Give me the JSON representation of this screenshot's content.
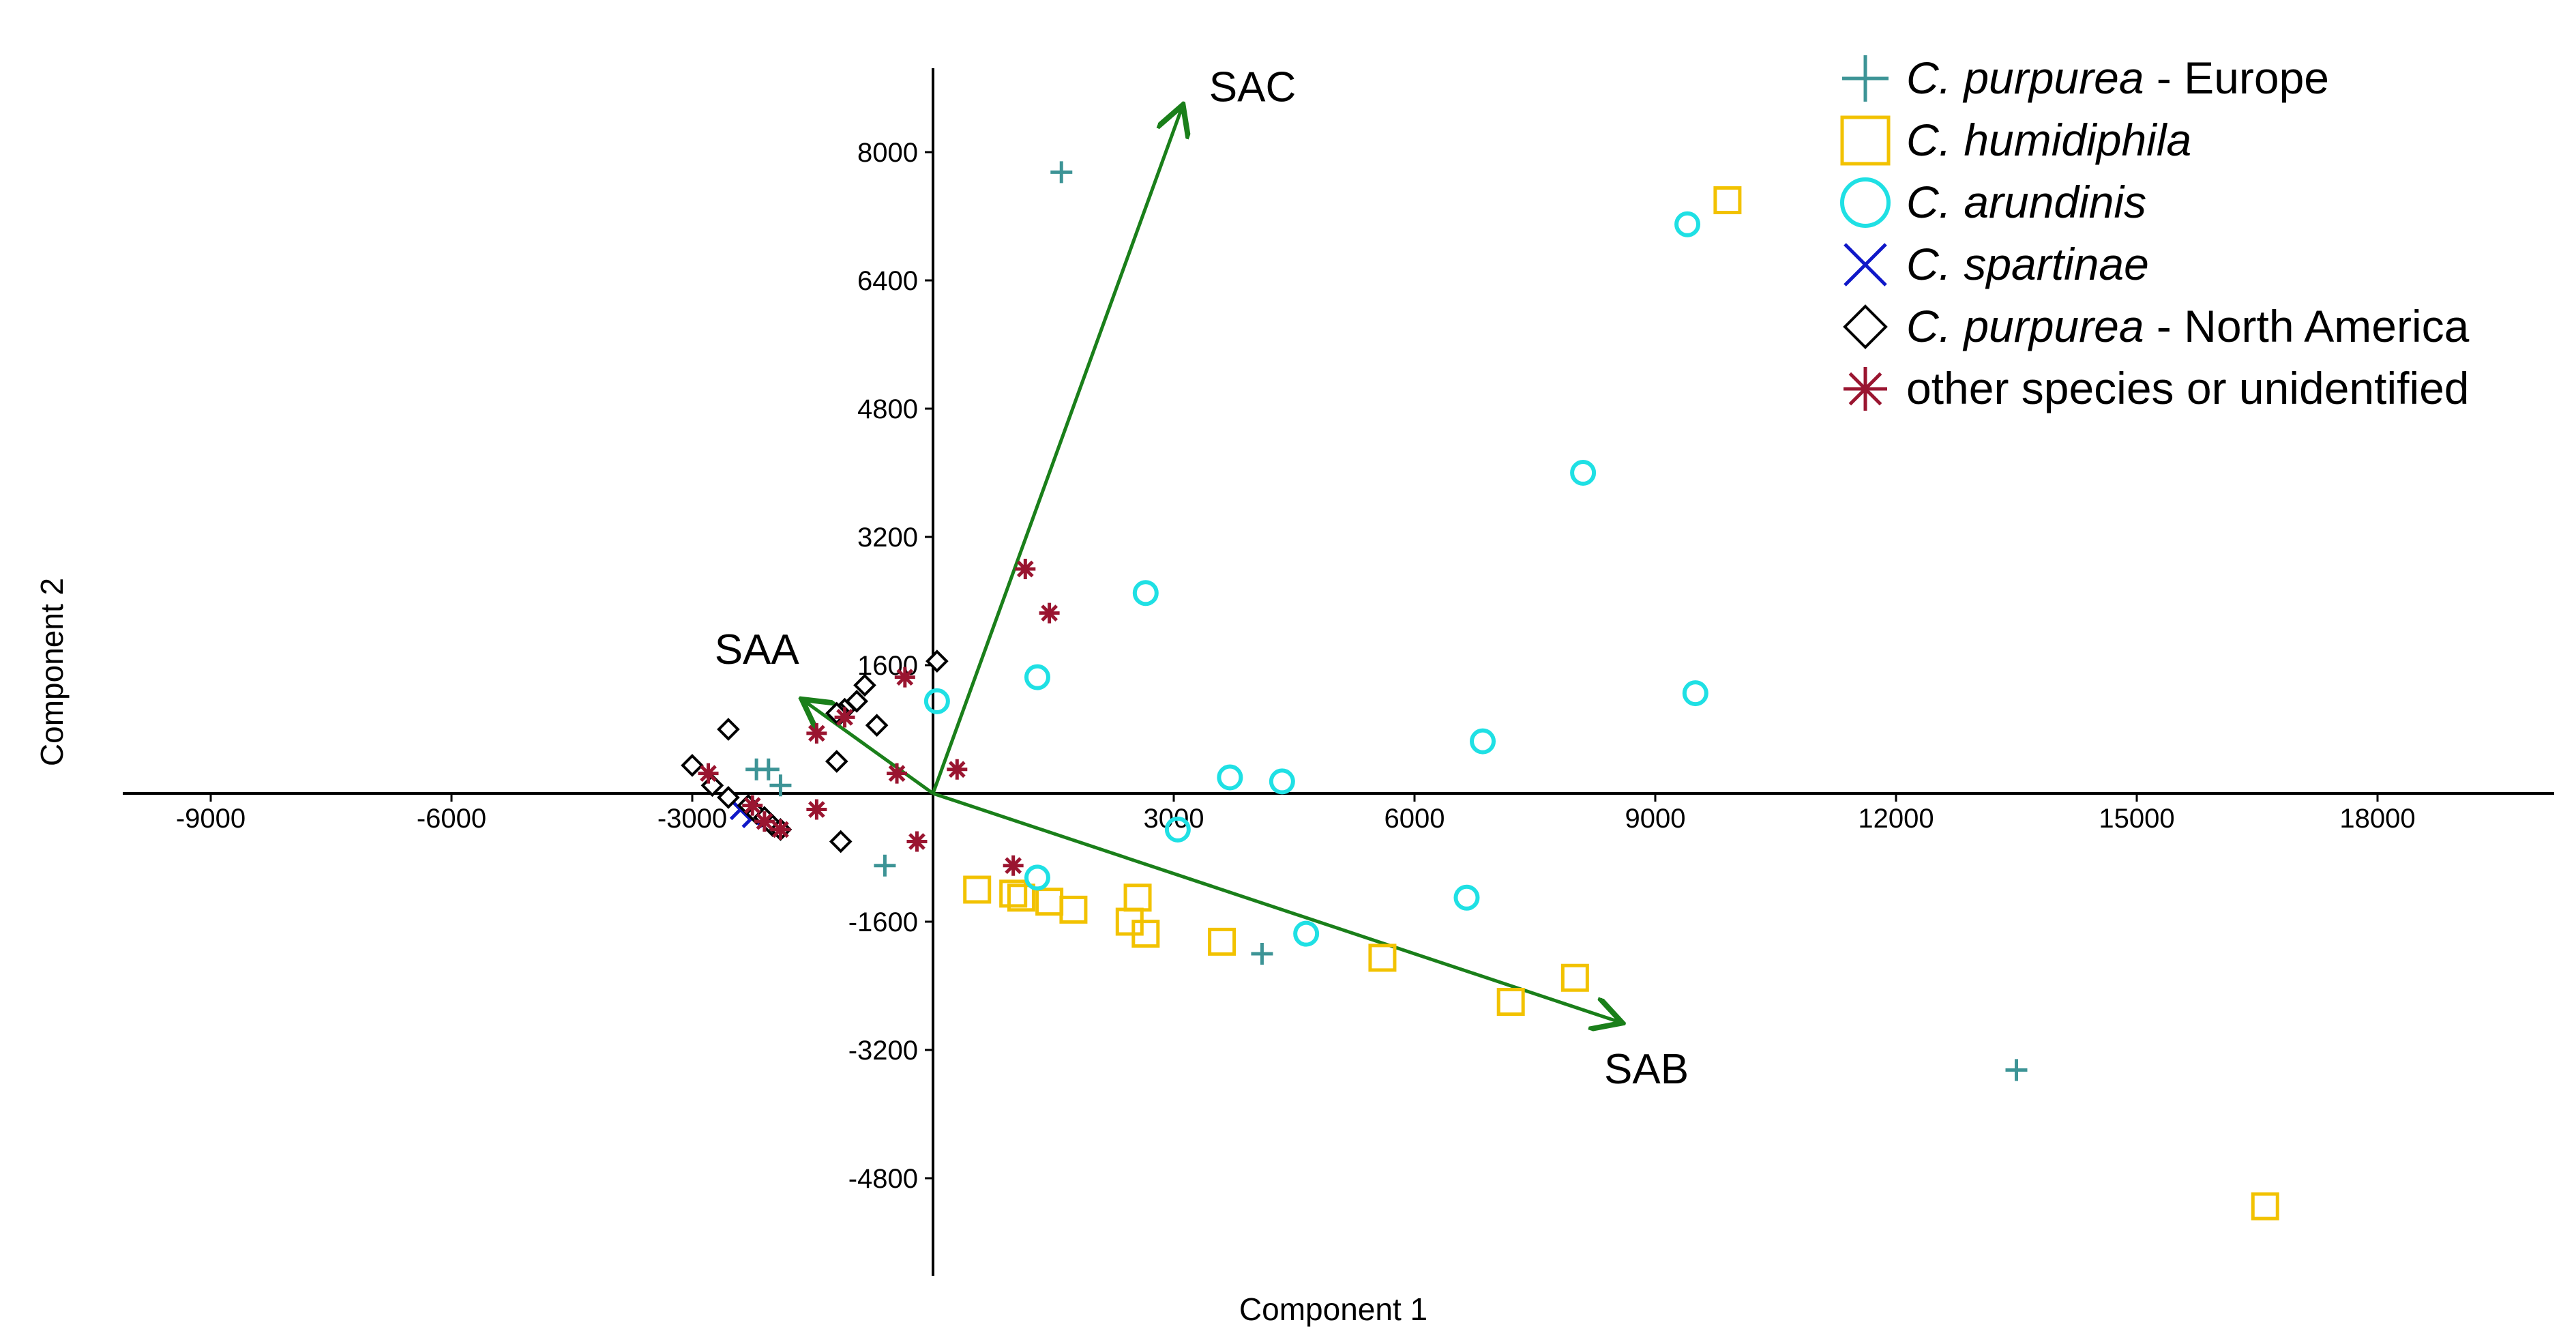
{
  "chart_data": {
    "type": "scatter",
    "title": "",
    "xlabel": "Component 1",
    "ylabel": "Component 2",
    "xlim": [
      -10000,
      20200
    ],
    "ylim": [
      -5950,
      9000
    ],
    "x_ticks": [
      -9000,
      -6000,
      -3000,
      3000,
      6000,
      9000,
      12000,
      15000,
      18000
    ],
    "y_ticks": [
      -4800,
      -3200,
      -1600,
      1600,
      3200,
      4800,
      6400,
      8000
    ],
    "x_tick_labels": [
      "-9000",
      "-6000",
      "-3000",
      "3000",
      "6000",
      "9000",
      "12000",
      "15000",
      "18000"
    ],
    "y_tick_labels": [
      "-4800",
      "-3200",
      "-1600",
      "1600",
      "3200",
      "4800",
      "6400",
      "8000"
    ],
    "grid": false,
    "legend_position": "top-right",
    "series": [
      {
        "name": "C. purpurea - Europe",
        "name_italic": "C. purpurea",
        "name_plain": " - Europe",
        "marker": "plus",
        "color": "#3d9496",
        "points": [
          [
            1600,
            7750
          ],
          [
            13500,
            -3450
          ],
          [
            -600,
            -900
          ],
          [
            4100,
            -2000
          ],
          [
            -2200,
            300
          ],
          [
            -2050,
            300
          ],
          [
            -1900,
            100
          ]
        ]
      },
      {
        "name": "C. humidiphila",
        "name_italic": "C. humidiphila",
        "name_plain": "",
        "marker": "square",
        "color": "#f2c200",
        "points": [
          [
            9900,
            7400
          ],
          [
            16600,
            -5150
          ],
          [
            550,
            -1200
          ],
          [
            1000,
            -1250
          ],
          [
            1100,
            -1300
          ],
          [
            1450,
            -1350
          ],
          [
            1750,
            -1450
          ],
          [
            2550,
            -1300
          ],
          [
            2450,
            -1600
          ],
          [
            2650,
            -1750
          ],
          [
            3600,
            -1850
          ],
          [
            5600,
            -2050
          ],
          [
            7200,
            -2600
          ],
          [
            8000,
            -2300
          ]
        ]
      },
      {
        "name": "C. arundinis",
        "name_italic": "C. arundinis",
        "name_plain": "",
        "marker": "circle",
        "color": "#1fe0e4",
        "points": [
          [
            9400,
            7100
          ],
          [
            8100,
            4000
          ],
          [
            2650,
            2500
          ],
          [
            1300,
            1450
          ],
          [
            50,
            1150
          ],
          [
            9500,
            1250
          ],
          [
            6850,
            650
          ],
          [
            3700,
            200
          ],
          [
            4350,
            150
          ],
          [
            3050,
            -450
          ],
          [
            1300,
            -1050
          ],
          [
            4650,
            -1750
          ],
          [
            6650,
            -1300
          ]
        ]
      },
      {
        "name": "C. spartinae",
        "name_italic": "C. spartinae",
        "name_plain": "",
        "marker": "x",
        "color": "#1018c8",
        "points": [
          [
            -2400,
            -200
          ],
          [
            -2250,
            -300
          ]
        ]
      },
      {
        "name": "C. purpurea - North America",
        "name_italic": "C. purpurea",
        "name_plain": " - North America",
        "marker": "diamond",
        "color": "#000000",
        "points": [
          [
            50,
            1650
          ],
          [
            -850,
            1350
          ],
          [
            -950,
            1150
          ],
          [
            -1100,
            1050
          ],
          [
            -1150,
            1000
          ],
          [
            -1200,
            1000
          ],
          [
            -700,
            850
          ],
          [
            -2550,
            800
          ],
          [
            -1200,
            400
          ],
          [
            -3000,
            350
          ],
          [
            -2750,
            100
          ],
          [
            -2550,
            -50
          ],
          [
            -2300,
            -150
          ],
          [
            -2200,
            -250
          ],
          [
            -2100,
            -300
          ],
          [
            -2000,
            -400
          ],
          [
            -1900,
            -450
          ],
          [
            -1150,
            -600
          ]
        ]
      },
      {
        "name": "other species or unidentified",
        "name_italic": "",
        "name_plain": "other species or unidentified",
        "marker": "asterisk",
        "color": "#9a1530",
        "points": [
          [
            1150,
            2800
          ],
          [
            1450,
            2250
          ],
          [
            -350,
            1450
          ],
          [
            -1100,
            950
          ],
          [
            -1450,
            750
          ],
          [
            -450,
            250
          ],
          [
            300,
            300
          ],
          [
            -2800,
            250
          ],
          [
            -2250,
            -150
          ],
          [
            -2100,
            -350
          ],
          [
            -1900,
            -450
          ],
          [
            -1450,
            -200
          ],
          [
            -200,
            -600
          ],
          [
            1000,
            -900
          ]
        ]
      }
    ],
    "vectors": [
      {
        "name": "SAC",
        "x": 3100,
        "y": 8550
      },
      {
        "name": "SAA",
        "x": -1600,
        "y": 1150
      },
      {
        "name": "SAB",
        "x": 8550,
        "y": -2850
      }
    ],
    "annotations": [
      "SAC",
      "SAA",
      "SAB"
    ]
  }
}
